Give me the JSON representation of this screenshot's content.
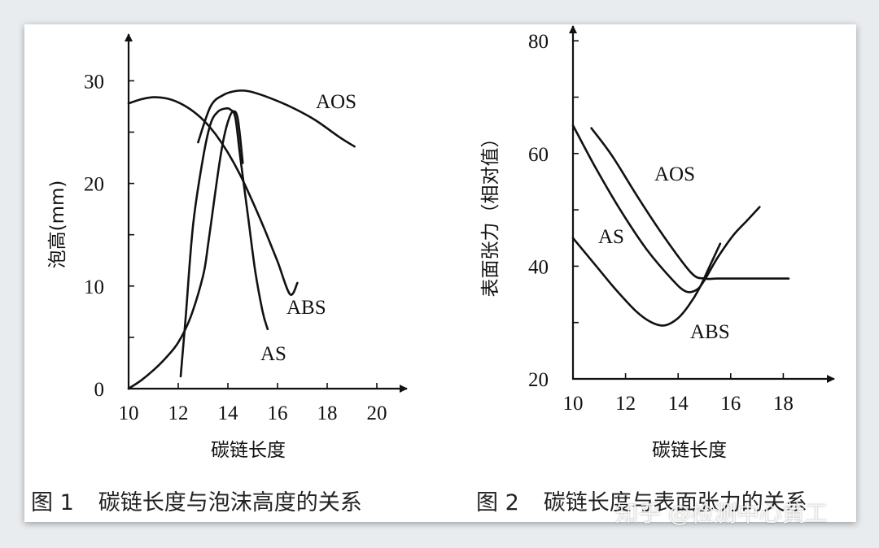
{
  "figure1": {
    "caption_number": "图 1",
    "caption_text": "碳链长度与泡沫高度的关系"
  },
  "figure2": {
    "caption_number": "图 2",
    "caption_text": "碳链长度与表面张力的关系"
  },
  "watermark": "知乎 @检测中心黄工",
  "chart_data": [
    {
      "type": "line",
      "xlabel": "碳链长度",
      "ylabel": "泡高(mm)",
      "xticks": [
        10,
        12,
        14,
        16,
        18,
        20
      ],
      "yticks": [
        0,
        10,
        20,
        30
      ],
      "xlim": [
        10,
        21.2
      ],
      "ylim": [
        0,
        34.5
      ],
      "grid": false,
      "series": [
        {
          "name": "AOS",
          "x": [
            12.8,
            13.3,
            13.8,
            14.3,
            14.8,
            15.5,
            16.5,
            17.5,
            18.5,
            19.1
          ],
          "y": [
            24.0,
            27.5,
            28.6,
            29.0,
            29.0,
            28.5,
            27.5,
            26.2,
            24.5,
            23.6
          ]
        },
        {
          "name": "ABS",
          "x": [
            10,
            10.5,
            11,
            11.5,
            12,
            12.5,
            13,
            13.5,
            14,
            14.5,
            15,
            15.5,
            16,
            16.5,
            16.8
          ],
          "y": [
            27.8,
            28.2,
            28.4,
            28.3,
            27.9,
            27.2,
            26.2,
            24.8,
            23.0,
            20.8,
            18.2,
            15.4,
            12.4,
            9.2,
            10.3
          ]
        },
        {
          "name": "AS",
          "x": [
            12.1,
            12.3,
            12.6,
            13.0,
            13.3,
            13.6,
            13.9,
            14.1,
            14.3,
            14.5,
            14.8,
            15.1,
            15.4,
            15.6
          ],
          "y": [
            1.2,
            7.0,
            16.0,
            22.5,
            25.8,
            27.0,
            27.3,
            27.2,
            26.4,
            22.5,
            17.0,
            11.5,
            7.5,
            5.8
          ]
        },
        {
          "name": "",
          "x": [
            10,
            10.5,
            11,
            11.5,
            12,
            12.5,
            13,
            13.2,
            13.4,
            13.6,
            13.8,
            14.0,
            14.2,
            14.4,
            14.6
          ],
          "y": [
            0,
            0.8,
            1.8,
            3.0,
            4.5,
            7.0,
            11.0,
            14.0,
            17.5,
            21.0,
            24.0,
            26.0,
            27.0,
            26.3,
            22.0
          ]
        }
      ]
    },
    {
      "type": "line",
      "xlabel": "碳链长度",
      "ylabel": "表面张力（相对值）",
      "xticks": [
        10,
        12,
        14,
        16,
        18
      ],
      "yticks": [
        20,
        40,
        60,
        80
      ],
      "xlim": [
        10,
        19.8
      ],
      "ylim": [
        20,
        84
      ],
      "grid": false,
      "series": [
        {
          "name": "AOS",
          "x": [
            10.7,
            11.5,
            12.5,
            13.5,
            14.5,
            15.0,
            15.5,
            16.5,
            17.5,
            18.2
          ],
          "y": [
            64.5,
            59.5,
            52.0,
            45.0,
            38.8,
            37.8,
            37.8,
            37.8,
            37.8,
            37.8
          ]
        },
        {
          "name": "AS",
          "x": [
            10,
            10.8,
            11.8,
            12.8,
            13.8,
            14.3,
            14.7,
            15.0,
            15.5,
            16.1,
            16.6,
            17.1
          ],
          "y": [
            65.0,
            58.0,
            50.0,
            43.0,
            37.5,
            35.5,
            35.8,
            37.5,
            41.5,
            45.5,
            48.0,
            50.5
          ]
        },
        {
          "name": "ABS",
          "x": [
            10,
            10.8,
            11.6,
            12.4,
            13.0,
            13.5,
            14.0,
            14.4,
            14.8,
            15.2,
            15.6
          ],
          "y": [
            45.0,
            40.5,
            36.0,
            32.0,
            30.0,
            29.5,
            30.8,
            33.0,
            36.0,
            40.0,
            44.0
          ]
        }
      ]
    }
  ]
}
